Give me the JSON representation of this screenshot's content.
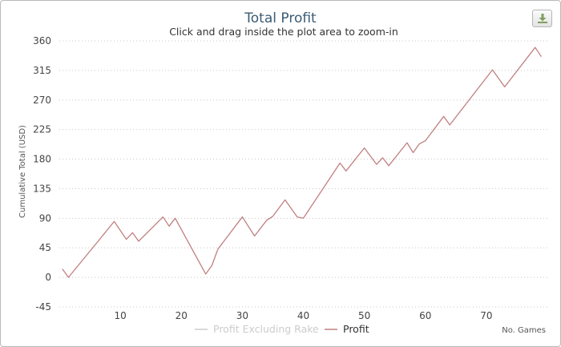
{
  "chart_data": {
    "type": "line",
    "title": "Total Profit",
    "subtitle": "Click and drag inside the plot area to zoom-in",
    "xlabel": "No. Games",
    "ylabel": "Cumulative Total (USD)",
    "xlim": [
      0,
      80
    ],
    "ylim": [
      -45,
      360
    ],
    "yticks": [
      -45,
      0,
      45,
      90,
      135,
      180,
      225,
      270,
      315,
      360
    ],
    "xticks": [
      10,
      20,
      30,
      40,
      50,
      60,
      70
    ],
    "grid": true,
    "legend_position": "bottom-center",
    "series": [
      {
        "name": "Profit Excluding Rake",
        "color": "#cccccc",
        "hidden": true,
        "x": [],
        "y": []
      },
      {
        "name": "Profit",
        "color": "#c08080",
        "hidden": false,
        "x": [
          0.5,
          1.5,
          9,
          11,
          12,
          13,
          17,
          18,
          19,
          24,
          25,
          26,
          30,
          32,
          34,
          35,
          37,
          39,
          40,
          46,
          47,
          50,
          52,
          53,
          54,
          57,
          58,
          59,
          60,
          63,
          64,
          71,
          73,
          78,
          79
        ],
        "y": [
          13,
          0,
          85,
          58,
          68,
          55,
          92,
          78,
          90,
          5,
          18,
          43,
          92,
          63,
          87,
          93,
          118,
          92,
          90,
          174,
          162,
          197,
          172,
          182,
          170,
          205,
          190,
          203,
          208,
          245,
          232,
          316,
          290,
          350,
          336
        ]
      }
    ]
  },
  "toolbar": {
    "export_icon": "download-icon"
  }
}
